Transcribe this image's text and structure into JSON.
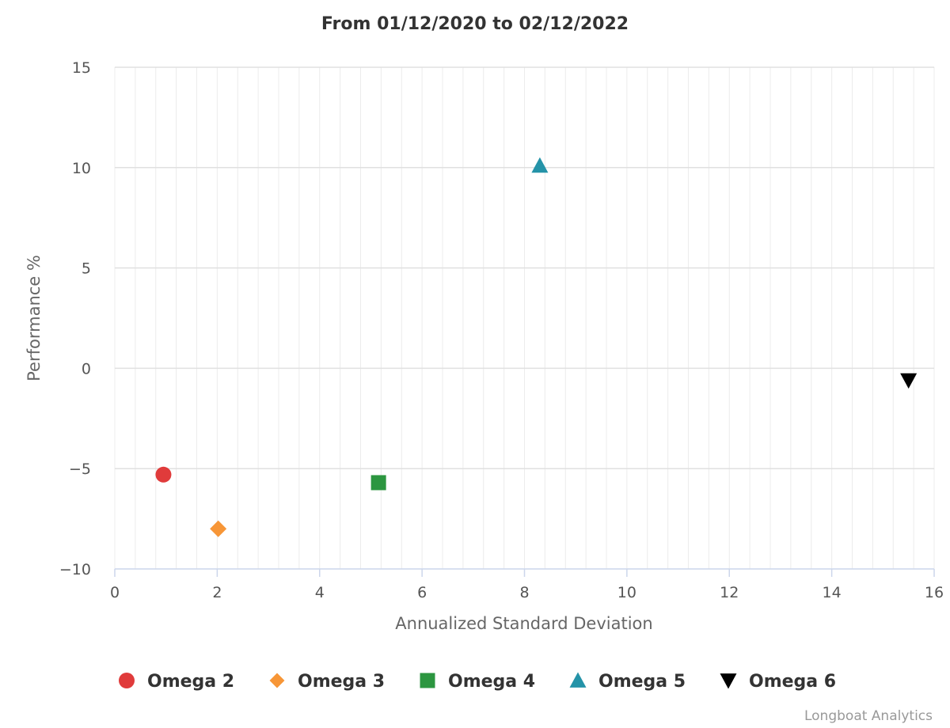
{
  "chart_data": {
    "type": "scatter",
    "title": "From 01/12/2020 to 02/12/2022",
    "xlabel": "Annualized Standard Deviation",
    "ylabel": "Performance %",
    "xlim": [
      0,
      16
    ],
    "ylim": [
      -10,
      15
    ],
    "x_ticks": [
      0,
      2,
      4,
      6,
      8,
      10,
      12,
      14,
      16
    ],
    "y_ticks": [
      -10,
      -5,
      0,
      5,
      10,
      15
    ],
    "x_tick_labels": [
      "0",
      "2",
      "4",
      "6",
      "8",
      "10",
      "12",
      "14",
      "16"
    ],
    "y_tick_labels": [
      "−10",
      "−5",
      "0",
      "5",
      "10",
      "15"
    ],
    "grid": true,
    "legend_position": "bottom",
    "series": [
      {
        "name": "Omega 2",
        "marker": "circle",
        "color": "#e03b3b",
        "x": 0.95,
        "y": -5.3
      },
      {
        "name": "Omega 3",
        "marker": "diamond",
        "color": "#f79637",
        "x": 2.02,
        "y": -8.0
      },
      {
        "name": "Omega 4",
        "marker": "square",
        "color": "#2c9640",
        "x": 5.15,
        "y": -5.7
      },
      {
        "name": "Omega 5",
        "marker": "triangle",
        "color": "#2493a8",
        "x": 8.3,
        "y": 10.1
      },
      {
        "name": "Omega 6",
        "marker": "triangle-down",
        "color": "#000000",
        "x": 15.5,
        "y": -0.6
      }
    ]
  },
  "credit": "Longboat Analytics"
}
